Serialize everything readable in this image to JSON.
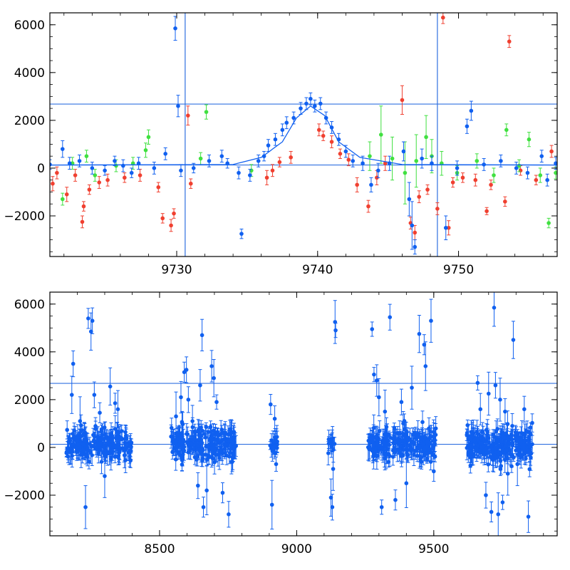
{
  "colors": {
    "red": "#f04030",
    "green": "#40e040",
    "blue": "#1060f0",
    "line": "#3070e0",
    "frame": "#000000"
  },
  "chart_data": [
    {
      "type": "scatter",
      "title": "",
      "xlabel": "",
      "ylabel": "",
      "xlim": [
        9721,
        9757
      ],
      "ylim": [
        -3700,
        6500
      ],
      "grid": false,
      "x_ticks": [
        9730,
        9740,
        9750
      ],
      "x_tick_labels": [
        "9730",
        "9740",
        "9750"
      ],
      "y_ticks": [
        -2000,
        0,
        2000,
        4000,
        6000
      ],
      "y_tick_labels": [
        "−2000",
        "0",
        "2000",
        "4000",
        "6000"
      ],
      "reference_lines": {
        "horizontal": [
          130,
          2680
        ],
        "vertical": [
          9730.6,
          9748.5
        ]
      },
      "model_curve": {
        "x": [
          9721,
          9734,
          9736,
          9737.5,
          9738.5,
          9739.5,
          9740.5,
          9741.5,
          9743,
          9746,
          9757
        ],
        "y": [
          130,
          150,
          450,
          1100,
          2100,
          2600,
          2200,
          1100,
          450,
          150,
          130
        ]
      },
      "series": [
        {
          "color": "red",
          "points": [
            [
              9721.2,
              -650,
              300
            ],
            [
              9721.5,
              -200,
              250
            ],
            [
              9722.2,
              -1100,
              300
            ],
            [
              9722.8,
              -300,
              250
            ],
            [
              9723.3,
              -2250,
              250
            ],
            [
              9723.4,
              -1600,
              200
            ],
            [
              9723.8,
              -900,
              200
            ],
            [
              9724.5,
              -600,
              250
            ],
            [
              9725.1,
              -500,
              250
            ],
            [
              9726.3,
              -400,
              200
            ],
            [
              9727.4,
              -300,
              250
            ],
            [
              9728.7,
              -800,
              200
            ],
            [
              9729.0,
              -2100,
              200
            ],
            [
              9729.6,
              -2400,
              250
            ],
            [
              9729.8,
              -1900,
              200
            ],
            [
              9730.8,
              2200,
              400
            ],
            [
              9731.0,
              -650,
              200
            ],
            [
              9736.4,
              -400,
              300
            ],
            [
              9736.8,
              -100,
              250
            ],
            [
              9737.3,
              250,
              200
            ],
            [
              9738.1,
              450,
              250
            ],
            [
              9740.1,
              1600,
              250
            ],
            [
              9740.4,
              1350,
              200
            ],
            [
              9741.0,
              1100,
              250
            ],
            [
              9741.6,
              600,
              200
            ],
            [
              9742.2,
              350,
              250
            ],
            [
              9742.8,
              -700,
              300
            ],
            [
              9743.6,
              -1600,
              250
            ],
            [
              9744.2,
              -400,
              300
            ],
            [
              9744.8,
              200,
              300
            ],
            [
              9746.0,
              2850,
              600
            ],
            [
              9746.6,
              -2300,
              250
            ],
            [
              9746.9,
              -2700,
              300
            ],
            [
              9747.2,
              -1200,
              250
            ],
            [
              9747.8,
              -900,
              200
            ],
            [
              9748.5,
              -1700,
              250
            ],
            [
              9748.9,
              6300,
              250
            ],
            [
              9749.3,
              -2500,
              300
            ],
            [
              9749.6,
              -600,
              200
            ],
            [
              9750.3,
              -400,
              200
            ],
            [
              9751.2,
              -500,
              250
            ],
            [
              9752.0,
              -1800,
              150
            ],
            [
              9752.3,
              -700,
              200
            ],
            [
              9753.3,
              -1400,
              200
            ],
            [
              9753.6,
              5300,
              250
            ],
            [
              9754.4,
              -100,
              200
            ],
            [
              9755.5,
              -500,
              200
            ],
            [
              9756.6,
              700,
              250
            ]
          ]
        },
        {
          "color": "green",
          "points": [
            [
              9721.9,
              -1300,
              250
            ],
            [
              9722.6,
              200,
              250
            ],
            [
              9723.6,
              500,
              250
            ],
            [
              9724.2,
              -300,
              250
            ],
            [
              9725.7,
              100,
              250
            ],
            [
              9726.9,
              200,
              250
            ],
            [
              9727.8,
              750,
              300
            ],
            [
              9728.0,
              1300,
              300
            ],
            [
              9731.7,
              400,
              250
            ],
            [
              9732.1,
              2350,
              300
            ],
            [
              9735.3,
              -100,
              250
            ],
            [
              9743.7,
              500,
              600
            ],
            [
              9744.5,
              1400,
              1200
            ],
            [
              9745.3,
              400,
              900
            ],
            [
              9746.2,
              -200,
              1300
            ],
            [
              9747.0,
              300,
              1100
            ],
            [
              9747.7,
              1300,
              900
            ],
            [
              9748.1,
              500,
              700
            ],
            [
              9748.8,
              200,
              500
            ],
            [
              9749.9,
              -200,
              300
            ],
            [
              9751.3,
              300,
              300
            ],
            [
              9752.5,
              -300,
              300
            ],
            [
              9753.4,
              1600,
              250
            ],
            [
              9754.3,
              100,
              250
            ],
            [
              9755.0,
              1200,
              300
            ],
            [
              9755.8,
              -300,
              300
            ],
            [
              9756.4,
              -2300,
              200
            ],
            [
              9756.9,
              -200,
              250
            ]
          ]
        },
        {
          "color": "blue",
          "points": [
            [
              9721.0,
              150,
              200
            ],
            [
              9721.9,
              800,
              350
            ],
            [
              9722.4,
              200,
              250
            ],
            [
              9723.1,
              300,
              250
            ],
            [
              9724.0,
              0,
              250
            ],
            [
              9724.9,
              -100,
              200
            ],
            [
              9725.6,
              300,
              200
            ],
            [
              9726.2,
              100,
              250
            ],
            [
              9726.8,
              -200,
              200
            ],
            [
              9727.3,
              200,
              250
            ],
            [
              9728.4,
              0,
              250
            ],
            [
              9729.2,
              600,
              250
            ],
            [
              9729.9,
              5850,
              500
            ],
            [
              9730.1,
              2600,
              450
            ],
            [
              9730.3,
              -100,
              250
            ],
            [
              9731.2,
              0,
              200
            ],
            [
              9732.3,
              300,
              250
            ],
            [
              9733.2,
              500,
              250
            ],
            [
              9733.6,
              200,
              200
            ],
            [
              9734.4,
              -200,
              250
            ],
            [
              9734.6,
              -2750,
              200
            ],
            [
              9735.2,
              -300,
              250
            ],
            [
              9735.8,
              300,
              250
            ],
            [
              9736.2,
              500,
              200
            ],
            [
              9736.5,
              950,
              250
            ],
            [
              9737.0,
              1200,
              250
            ],
            [
              9737.5,
              1600,
              250
            ],
            [
              9737.8,
              1900,
              250
            ],
            [
              9738.3,
              2100,
              250
            ],
            [
              9738.8,
              2500,
              250
            ],
            [
              9739.2,
              2700,
              250
            ],
            [
              9739.5,
              2900,
              250
            ],
            [
              9739.8,
              2600,
              250
            ],
            [
              9740.2,
              2700,
              250
            ],
            [
              9740.6,
              2100,
              250
            ],
            [
              9741.0,
              1700,
              250
            ],
            [
              9741.5,
              1200,
              250
            ],
            [
              9742.0,
              700,
              250
            ],
            [
              9742.5,
              300,
              250
            ],
            [
              9743.2,
              200,
              300
            ],
            [
              9743.8,
              -700,
              300
            ],
            [
              9744.3,
              -100,
              300
            ],
            [
              9745.1,
              200,
              300
            ],
            [
              9746.1,
              700,
              400
            ],
            [
              9746.5,
              -1300,
              700
            ],
            [
              9746.7,
              -2400,
              1000
            ],
            [
              9746.9,
              -3300,
              300
            ],
            [
              9747.4,
              400,
              400
            ],
            [
              9748.1,
              200,
              300
            ],
            [
              9749.1,
              -2500,
              500
            ],
            [
              9749.9,
              0,
              300
            ],
            [
              9750.6,
              1750,
              300
            ],
            [
              9750.9,
              2400,
              400
            ],
            [
              9751.8,
              150,
              250
            ],
            [
              9753.0,
              300,
              250
            ],
            [
              9754.1,
              0,
              250
            ],
            [
              9754.9,
              -200,
              250
            ],
            [
              9755.9,
              500,
              250
            ],
            [
              9756.3,
              -500,
              250
            ],
            [
              9756.9,
              200,
              250
            ]
          ]
        }
      ]
    },
    {
      "type": "scatter",
      "title": "",
      "xlabel": "",
      "ylabel": "",
      "xlim": [
        8100,
        9950
      ],
      "ylim": [
        -3700,
        6500
      ],
      "grid": false,
      "x_ticks": [
        8500,
        9000,
        9500
      ],
      "x_tick_labels": [
        "8500",
        "9000",
        "9500"
      ],
      "y_ticks": [
        -2000,
        0,
        2000,
        4000,
        6000
      ],
      "y_tick_labels": [
        "−2000",
        "0",
        "2000",
        "4000",
        "6000"
      ],
      "reference_lines": {
        "horizontal": [
          130,
          2680
        ]
      },
      "clusters": [
        {
          "x_range": [
            8160,
            8400
          ],
          "y_spread": 600,
          "n": 200
        },
        {
          "x_range": [
            8540,
            8780
          ],
          "y_spread": 700,
          "n": 220
        },
        {
          "x_range": [
            8900,
            8930
          ],
          "y_spread": 400,
          "n": 18
        },
        {
          "x_range": [
            9115,
            9140
          ],
          "y_spread": 350,
          "n": 14
        },
        {
          "x_range": [
            9260,
            9510
          ],
          "y_spread": 700,
          "n": 220
        },
        {
          "x_range": [
            9620,
            9860
          ],
          "y_spread": 750,
          "n": 240
        }
      ],
      "outliers": [
        [
          8180,
          2200
        ],
        [
          8185,
          3500
        ],
        [
          8210,
          1100
        ],
        [
          8230,
          -2500
        ],
        [
          8240,
          5400
        ],
        [
          8250,
          4850
        ],
        [
          8255,
          5300
        ],
        [
          8262,
          2200
        ],
        [
          8282,
          1450
        ],
        [
          8300,
          -1200
        ],
        [
          8320,
          2550
        ],
        [
          8338,
          1850
        ],
        [
          8348,
          1600
        ],
        [
          8560,
          1300
        ],
        [
          8578,
          2100
        ],
        [
          8590,
          3150
        ],
        [
          8598,
          3250
        ],
        [
          8605,
          2000
        ],
        [
          8620,
          1100
        ],
        [
          8640,
          -1600
        ],
        [
          8648,
          2600
        ],
        [
          8655,
          4700
        ],
        [
          8660,
          -2500
        ],
        [
          8672,
          -1800
        ],
        [
          8690,
          3400
        ],
        [
          8698,
          2900
        ],
        [
          8708,
          1900
        ],
        [
          8730,
          -1900
        ],
        [
          8752,
          -2800
        ],
        [
          8905,
          1800
        ],
        [
          8910,
          -2400
        ],
        [
          8920,
          1200
        ],
        [
          8925,
          -700
        ],
        [
          9125,
          -2100
        ],
        [
          9130,
          -2500
        ],
        [
          9133,
          -900
        ],
        [
          9140,
          5250
        ],
        [
          9142,
          4900
        ],
        [
          9275,
          4950
        ],
        [
          9282,
          3050
        ],
        [
          9292,
          2800
        ],
        [
          9300,
          2100
        ],
        [
          9310,
          -2500
        ],
        [
          9322,
          1500
        ],
        [
          9340,
          5450
        ],
        [
          9360,
          -2200
        ],
        [
          9382,
          1900
        ],
        [
          9400,
          -1500
        ],
        [
          9420,
          2500
        ],
        [
          9447,
          4750
        ],
        [
          9465,
          4300
        ],
        [
          9470,
          3400
        ],
        [
          9490,
          5300
        ],
        [
          9500,
          -1000
        ],
        [
          9660,
          2700
        ],
        [
          9670,
          1600
        ],
        [
          9690,
          -2000
        ],
        [
          9700,
          2250
        ],
        [
          9710,
          -2700
        ],
        [
          9720,
          5850
        ],
        [
          9725,
          2600
        ],
        [
          9735,
          -2800
        ],
        [
          9742,
          2000
        ],
        [
          9751,
          -2300
        ],
        [
          9760,
          1500
        ],
        [
          9770,
          -1100
        ],
        [
          9790,
          4500
        ],
        [
          9805,
          -700
        ],
        [
          9830,
          1600
        ],
        [
          9845,
          -2900
        ]
      ],
      "model_overlay_x_range": [
        9720,
        9760
      ]
    }
  ]
}
